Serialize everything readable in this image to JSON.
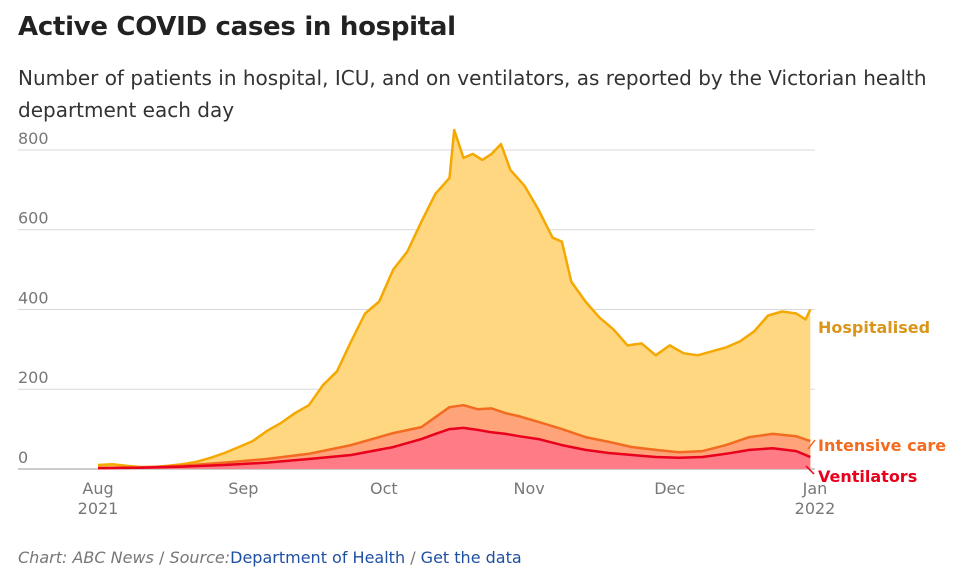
{
  "header": {
    "title": "Active COVID cases in hospital",
    "subtitle": "Number of patients in hospital, ICU, and on ventilators, as reported by the Victorian health department each day"
  },
  "footer": {
    "chart_label": "Chart: ABC News",
    "separator": "/",
    "source_label": "Source:",
    "source_link": "Department of Health",
    "data_link": "Get the data"
  },
  "colors": {
    "hospitalised_line": "#f5a800",
    "hospitalised_fill": "#ffd780",
    "icu_line": "#f26b21",
    "icu_fill": "#ffa47a",
    "vent_line": "#e8001c",
    "vent_fill": "#ff7b86",
    "grid": "#d9d9d9",
    "axis_text": "#777777",
    "link": "#1f4fa3"
  },
  "chart_data": {
    "type": "area",
    "x_unit": "date",
    "xlim": [
      "2021-08-01",
      "2022-01-01"
    ],
    "ylim": [
      0,
      850
    ],
    "yticks": [
      0,
      200,
      400,
      600,
      800
    ],
    "xticks": [
      {
        "date": "2021-08-01",
        "label": "Aug",
        "sublabel": "2021"
      },
      {
        "date": "2021-09-01",
        "label": "Sep",
        "sublabel": ""
      },
      {
        "date": "2021-10-01",
        "label": "Oct",
        "sublabel": ""
      },
      {
        "date": "2021-11-01",
        "label": "Nov",
        "sublabel": ""
      },
      {
        "date": "2021-12-01",
        "label": "Dec",
        "sublabel": ""
      },
      {
        "date": "2022-01-01",
        "label": "Jan",
        "sublabel": "2022"
      }
    ],
    "grid": true,
    "series": [
      {
        "name": "Hospitalised",
        "points": [
          [
            "2021-08-01",
            10
          ],
          [
            "2021-08-04",
            12
          ],
          [
            "2021-08-07",
            8
          ],
          [
            "2021-08-10",
            5
          ],
          [
            "2021-08-13",
            5
          ],
          [
            "2021-08-16",
            8
          ],
          [
            "2021-08-19",
            12
          ],
          [
            "2021-08-22",
            18
          ],
          [
            "2021-08-25",
            28
          ],
          [
            "2021-08-28",
            40
          ],
          [
            "2021-08-31",
            55
          ],
          [
            "2021-09-03",
            70
          ],
          [
            "2021-09-06",
            95
          ],
          [
            "2021-09-09",
            115
          ],
          [
            "2021-09-12",
            140
          ],
          [
            "2021-09-15",
            160
          ],
          [
            "2021-09-18",
            210
          ],
          [
            "2021-09-21",
            245
          ],
          [
            "2021-09-24",
            320
          ],
          [
            "2021-09-27",
            390
          ],
          [
            "2021-09-30",
            420
          ],
          [
            "2021-10-03",
            500
          ],
          [
            "2021-10-06",
            545
          ],
          [
            "2021-10-09",
            620
          ],
          [
            "2021-10-12",
            690
          ],
          [
            "2021-10-15",
            730
          ],
          [
            "2021-10-16",
            850
          ],
          [
            "2021-10-18",
            780
          ],
          [
            "2021-10-20",
            790
          ],
          [
            "2021-10-22",
            775
          ],
          [
            "2021-10-24",
            790
          ],
          [
            "2021-10-26",
            815
          ],
          [
            "2021-10-28",
            750
          ],
          [
            "2021-10-31",
            710
          ],
          [
            "2021-11-03",
            650
          ],
          [
            "2021-11-06",
            580
          ],
          [
            "2021-11-08",
            570
          ],
          [
            "2021-11-10",
            470
          ],
          [
            "2021-11-13",
            420
          ],
          [
            "2021-11-16",
            380
          ],
          [
            "2021-11-19",
            350
          ],
          [
            "2021-11-22",
            310
          ],
          [
            "2021-11-25",
            315
          ],
          [
            "2021-11-28",
            285
          ],
          [
            "2021-12-01",
            310
          ],
          [
            "2021-12-04",
            290
          ],
          [
            "2021-12-07",
            285
          ],
          [
            "2021-12-10",
            295
          ],
          [
            "2021-12-13",
            305
          ],
          [
            "2021-12-16",
            320
          ],
          [
            "2021-12-19",
            345
          ],
          [
            "2021-12-22",
            385
          ],
          [
            "2021-12-25",
            395
          ],
          [
            "2021-12-28",
            390
          ],
          [
            "2021-12-30",
            375
          ],
          [
            "2021-12-31",
            400
          ]
        ]
      },
      {
        "name": "Intensive care",
        "points": [
          [
            "2021-08-01",
            3
          ],
          [
            "2021-08-10",
            4
          ],
          [
            "2021-08-19",
            8
          ],
          [
            "2021-08-28",
            16
          ],
          [
            "2021-09-06",
            25
          ],
          [
            "2021-09-15",
            38
          ],
          [
            "2021-09-24",
            60
          ],
          [
            "2021-10-03",
            90
          ],
          [
            "2021-10-09",
            105
          ],
          [
            "2021-10-12",
            130
          ],
          [
            "2021-10-15",
            155
          ],
          [
            "2021-10-18",
            160
          ],
          [
            "2021-10-21",
            150
          ],
          [
            "2021-10-24",
            152
          ],
          [
            "2021-10-27",
            140
          ],
          [
            "2021-10-30",
            132
          ],
          [
            "2021-11-03",
            118
          ],
          [
            "2021-11-08",
            100
          ],
          [
            "2021-11-13",
            80
          ],
          [
            "2021-11-18",
            68
          ],
          [
            "2021-11-23",
            55
          ],
          [
            "2021-11-28",
            48
          ],
          [
            "2021-12-03",
            42
          ],
          [
            "2021-12-08",
            45
          ],
          [
            "2021-12-13",
            60
          ],
          [
            "2021-12-18",
            80
          ],
          [
            "2021-12-23",
            88
          ],
          [
            "2021-12-28",
            82
          ],
          [
            "2021-12-31",
            70
          ]
        ]
      },
      {
        "name": "Ventilators",
        "points": [
          [
            "2021-08-01",
            2
          ],
          [
            "2021-08-10",
            3
          ],
          [
            "2021-08-19",
            6
          ],
          [
            "2021-08-28",
            10
          ],
          [
            "2021-09-06",
            16
          ],
          [
            "2021-09-15",
            25
          ],
          [
            "2021-09-24",
            35
          ],
          [
            "2021-10-03",
            55
          ],
          [
            "2021-10-09",
            75
          ],
          [
            "2021-10-12",
            88
          ],
          [
            "2021-10-15",
            100
          ],
          [
            "2021-10-18",
            103
          ],
          [
            "2021-10-21",
            98
          ],
          [
            "2021-10-24",
            92
          ],
          [
            "2021-10-27",
            88
          ],
          [
            "2021-10-30",
            82
          ],
          [
            "2021-11-03",
            75
          ],
          [
            "2021-11-08",
            60
          ],
          [
            "2021-11-13",
            48
          ],
          [
            "2021-11-18",
            40
          ],
          [
            "2021-11-23",
            35
          ],
          [
            "2021-11-28",
            30
          ],
          [
            "2021-12-03",
            28
          ],
          [
            "2021-12-08",
            30
          ],
          [
            "2021-12-13",
            38
          ],
          [
            "2021-12-18",
            48
          ],
          [
            "2021-12-23",
            52
          ],
          [
            "2021-12-28",
            45
          ],
          [
            "2021-12-31",
            30
          ]
        ]
      }
    ]
  }
}
